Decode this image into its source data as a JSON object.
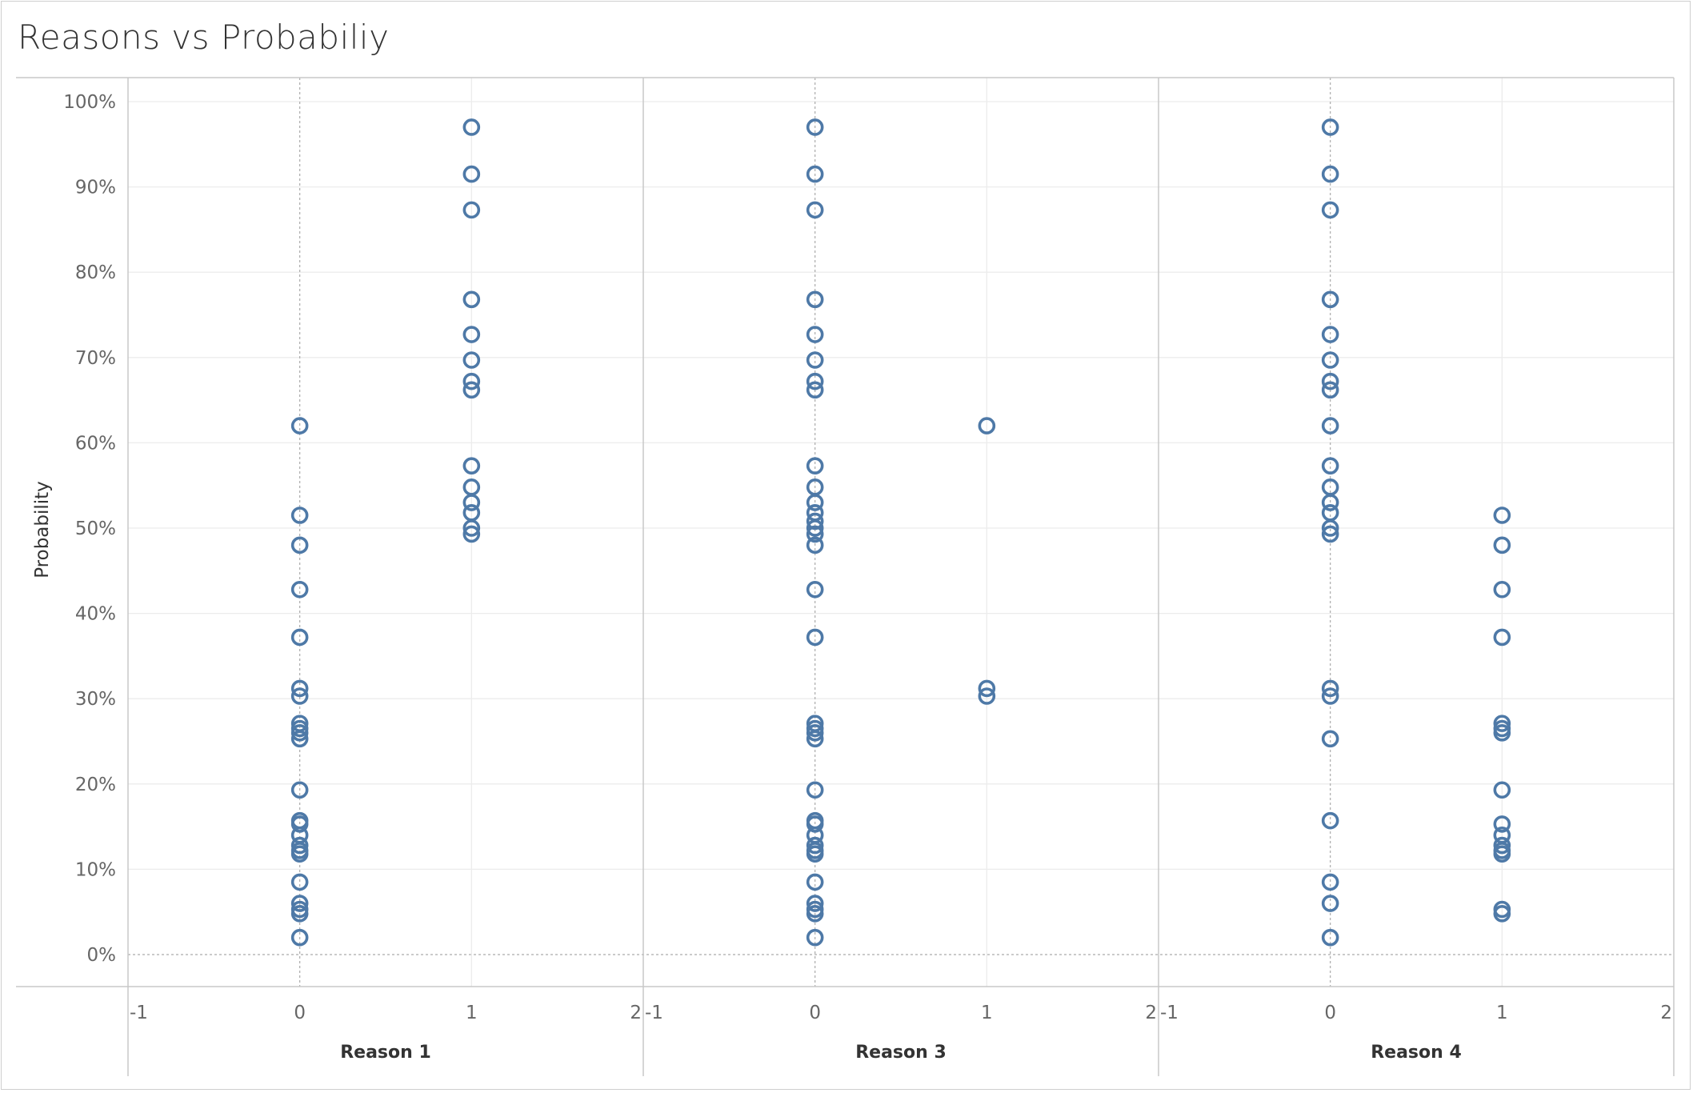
{
  "title": "Reasons vs Probabiliy",
  "chart_data": {
    "type": "scatter",
    "title": "Reasons vs Probabiliy",
    "ylabel": "Probability",
    "ylim": [
      0,
      1.0
    ],
    "y_ticks": [
      "0%",
      "10%",
      "20%",
      "30%",
      "40%",
      "50%",
      "60%",
      "70%",
      "80%",
      "90%",
      "100%"
    ],
    "xlim": [
      -1,
      2
    ],
    "x_ticks": [
      "-1",
      "0",
      "1",
      "2"
    ],
    "grid": true,
    "marker": "hollow-circle",
    "color": "#4e79a7",
    "panes": [
      {
        "name": "Reason 1",
        "points": {
          "0": [
            0.62,
            0.515,
            0.48,
            0.428,
            0.372,
            0.312,
            0.303,
            0.271,
            0.265,
            0.26,
            0.253,
            0.193,
            0.157,
            0.153,
            0.14,
            0.128,
            0.122,
            0.118,
            0.085,
            0.06,
            0.053,
            0.048,
            0.02
          ],
          "1": [
            0.97,
            0.915,
            0.873,
            0.768,
            0.727,
            0.697,
            0.672,
            0.662,
            0.573,
            0.548,
            0.53,
            0.518,
            0.5,
            0.493
          ]
        }
      },
      {
        "name": "Reason 3",
        "points": {
          "0": [
            0.97,
            0.915,
            0.873,
            0.768,
            0.727,
            0.697,
            0.672,
            0.662,
            0.573,
            0.548,
            0.53,
            0.518,
            0.508,
            0.5,
            0.493,
            0.48,
            0.428,
            0.372,
            0.271,
            0.265,
            0.26,
            0.253,
            0.193,
            0.157,
            0.153,
            0.14,
            0.128,
            0.122,
            0.118,
            0.085,
            0.06,
            0.053,
            0.048,
            0.02
          ],
          "1": [
            0.62,
            0.312,
            0.303
          ]
        }
      },
      {
        "name": "Reason 4",
        "points": {
          "0": [
            0.97,
            0.915,
            0.873,
            0.768,
            0.727,
            0.697,
            0.672,
            0.662,
            0.62,
            0.573,
            0.548,
            0.53,
            0.518,
            0.5,
            0.493,
            0.312,
            0.303,
            0.253,
            0.157,
            0.085,
            0.06,
            0.02
          ],
          "1": [
            0.515,
            0.48,
            0.428,
            0.372,
            0.271,
            0.265,
            0.26,
            0.193,
            0.153,
            0.14,
            0.128,
            0.122,
            0.118,
            0.053,
            0.048
          ]
        }
      }
    ]
  }
}
